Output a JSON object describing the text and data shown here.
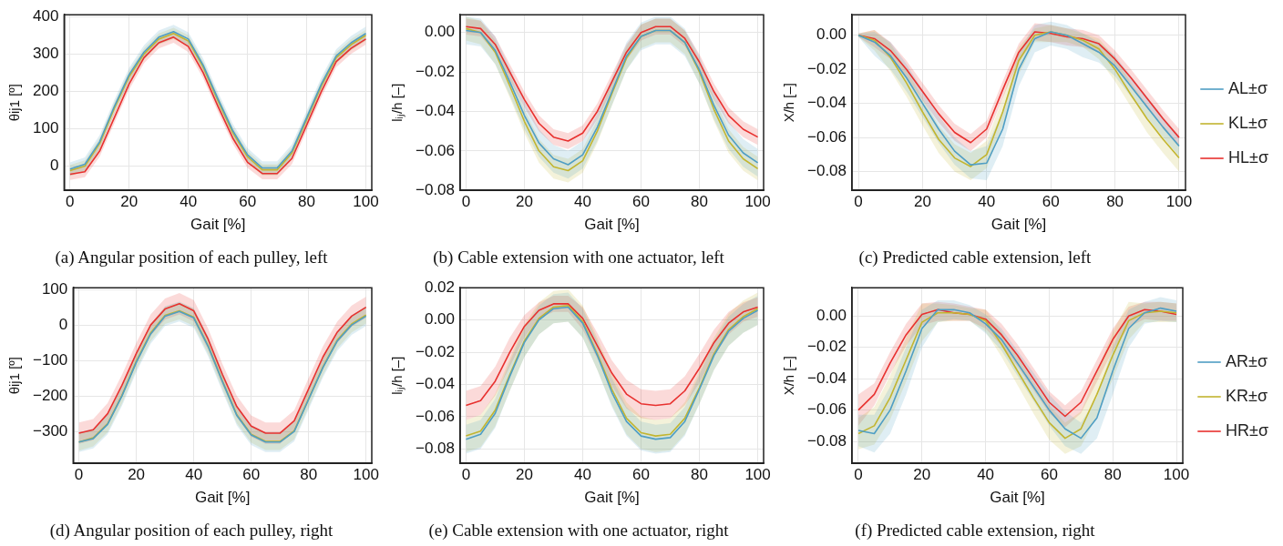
{
  "chart_data": [
    {
      "type": "line",
      "title": "(a) Angular position of each pulley, left",
      "xlabel": "Gait [%]",
      "ylabel": "θij1 [º]",
      "x": [
        0,
        5,
        10,
        15,
        20,
        25,
        30,
        35,
        40,
        45,
        50,
        55,
        60,
        65,
        70,
        75,
        80,
        85,
        90,
        95,
        100
      ],
      "xlim": [
        -2,
        102
      ],
      "xticks": [
        0,
        20,
        40,
        60,
        80,
        100
      ],
      "ylim": [
        -65,
        405
      ],
      "yticks": [
        0,
        100,
        200,
        300,
        400
      ],
      "grid": true,
      "legend": false,
      "marker": "none",
      "line_style": "solid",
      "series": [
        {
          "color": "#4f9ec4",
          "values": [
            -8,
            5,
            65,
            160,
            245,
            305,
            345,
            360,
            340,
            270,
            180,
            95,
            30,
            -5,
            -5,
            40,
            130,
            220,
            295,
            330,
            355
          ],
          "lower": [
            -26,
            -13,
            47,
            142,
            227,
            287,
            327,
            342,
            322,
            252,
            162,
            77,
            12,
            -23,
            -23,
            22,
            112,
            202,
            277,
            312,
            337
          ],
          "upper": [
            10,
            23,
            83,
            178,
            263,
            323,
            363,
            378,
            358,
            288,
            198,
            113,
            48,
            13,
            13,
            58,
            148,
            238,
            313,
            348,
            373
          ]
        },
        {
          "color": "#c2b530",
          "values": [
            -12,
            0,
            60,
            155,
            240,
            300,
            340,
            355,
            335,
            265,
            175,
            90,
            25,
            -10,
            -10,
            35,
            125,
            215,
            290,
            325,
            350
          ],
          "lower": [
            -27,
            -15,
            45,
            140,
            225,
            285,
            325,
            340,
            320,
            250,
            160,
            75,
            10,
            -25,
            -25,
            20,
            110,
            200,
            275,
            310,
            335
          ],
          "upper": [
            3,
            15,
            75,
            170,
            255,
            315,
            355,
            370,
            350,
            280,
            190,
            105,
            40,
            5,
            5,
            50,
            140,
            230,
            305,
            340,
            365
          ]
        },
        {
          "color": "#e8312f",
          "values": [
            -22,
            -15,
            40,
            130,
            220,
            290,
            330,
            345,
            320,
            250,
            160,
            75,
            10,
            -20,
            -20,
            20,
            110,
            200,
            280,
            315,
            340
          ],
          "lower": [
            -37,
            -30,
            25,
            115,
            205,
            275,
            315,
            330,
            305,
            235,
            145,
            60,
            -5,
            -35,
            -35,
            5,
            95,
            185,
            265,
            300,
            325
          ],
          "upper": [
            -7,
            0,
            55,
            145,
            235,
            305,
            345,
            360,
            335,
            265,
            175,
            90,
            25,
            -5,
            -5,
            35,
            125,
            215,
            295,
            330,
            355
          ]
        }
      ]
    },
    {
      "type": "line",
      "title": "(b) Cable extension with one actuator, left",
      "xlabel": "Gait [%]",
      "ylabel": "lᵢⱼ/h [–]",
      "x": [
        0,
        5,
        10,
        15,
        20,
        25,
        30,
        35,
        40,
        45,
        50,
        55,
        60,
        65,
        70,
        75,
        80,
        85,
        90,
        95,
        100
      ],
      "xlim": [
        -2,
        102
      ],
      "xticks": [
        0,
        20,
        40,
        60,
        80,
        100
      ],
      "ylim": [
        -0.08,
        0.009
      ],
      "yticks": [
        {
          "value": -0.08,
          "label": "−0.08"
        },
        {
          "value": -0.06,
          "label": "−0.06"
        },
        {
          "value": -0.04,
          "label": "−0.04"
        },
        {
          "value": -0.02,
          "label": "−0.02"
        },
        {
          "value": 0,
          "label": "0.00"
        }
      ],
      "grid": true,
      "legend": false,
      "marker": "none",
      "line_style": "solid",
      "series": [
        {
          "color": "#4f9ec4",
          "values": [
            0.001,
            0,
            -0.009,
            -0.025,
            -0.042,
            -0.056,
            -0.064,
            -0.067,
            -0.062,
            -0.048,
            -0.03,
            -0.012,
            -0.002,
            0.001,
            0.001,
            -0.005,
            -0.019,
            -0.037,
            -0.052,
            -0.061,
            -0.066
          ],
          "lower": [
            -0.006,
            -0.007,
            -0.016,
            -0.032,
            -0.049,
            -0.063,
            -0.071,
            -0.074,
            -0.069,
            -0.055,
            -0.037,
            -0.019,
            -0.009,
            -0.006,
            -0.006,
            -0.012,
            -0.026,
            -0.044,
            -0.059,
            -0.068,
            -0.073
          ],
          "upper": [
            0.008,
            0.007,
            -0.002,
            -0.018,
            -0.035,
            -0.049,
            -0.057,
            -0.06,
            -0.055,
            -0.041,
            -0.023,
            -0.005,
            0.005,
            0.008,
            0.008,
            0.002,
            -0.012,
            -0.03,
            -0.045,
            -0.054,
            -0.059
          ]
        },
        {
          "color": "#c2b530",
          "values": [
            0.002,
            0,
            -0.01,
            -0.027,
            -0.045,
            -0.06,
            -0.068,
            -0.07,
            -0.065,
            -0.05,
            -0.031,
            -0.013,
            -0.002,
            0.001,
            0.001,
            -0.005,
            -0.02,
            -0.039,
            -0.055,
            -0.064,
            -0.069
          ],
          "lower": [
            -0.004,
            -0.006,
            -0.016,
            -0.033,
            -0.051,
            -0.066,
            -0.074,
            -0.076,
            -0.071,
            -0.056,
            -0.037,
            -0.019,
            -0.008,
            -0.005,
            -0.005,
            -0.011,
            -0.026,
            -0.045,
            -0.061,
            -0.07,
            -0.075
          ],
          "upper": [
            0.008,
            0.006,
            -0.004,
            -0.021,
            -0.039,
            -0.054,
            -0.062,
            -0.064,
            -0.059,
            -0.044,
            -0.025,
            -0.007,
            0.004,
            0.007,
            0.007,
            0.001,
            -0.014,
            -0.033,
            -0.049,
            -0.058,
            -0.063
          ]
        },
        {
          "color": "#e8312f",
          "values": [
            0.003,
            0.002,
            -0.006,
            -0.02,
            -0.034,
            -0.046,
            -0.053,
            -0.055,
            -0.051,
            -0.04,
            -0.025,
            -0.01,
            0,
            0.003,
            0.003,
            -0.003,
            -0.015,
            -0.03,
            -0.042,
            -0.049,
            -0.053
          ],
          "lower": [
            -0.001,
            -0.002,
            -0.01,
            -0.024,
            -0.038,
            -0.05,
            -0.057,
            -0.059,
            -0.055,
            -0.044,
            -0.029,
            -0.014,
            -0.004,
            -0.001,
            -0.001,
            -0.007,
            -0.019,
            -0.034,
            -0.046,
            -0.053,
            -0.057
          ],
          "upper": [
            0.007,
            0.006,
            -0.002,
            -0.016,
            -0.03,
            -0.042,
            -0.049,
            -0.051,
            -0.047,
            -0.036,
            -0.021,
            -0.006,
            0.004,
            0.007,
            0.007,
            0.001,
            -0.011,
            -0.026,
            -0.038,
            -0.045,
            -0.049
          ]
        }
      ]
    },
    {
      "type": "line",
      "title": "(c) Predicted cable extension, left",
      "xlabel": "Gait [%]",
      "ylabel": "X/h [–]",
      "x": [
        0,
        5,
        10,
        15,
        20,
        25,
        30,
        35,
        40,
        45,
        50,
        55,
        60,
        65,
        70,
        75,
        80,
        85,
        90,
        95,
        100
      ],
      "xlim": [
        -2,
        102
      ],
      "xticks": [
        0,
        20,
        40,
        60,
        80,
        100
      ],
      "ylim": [
        -0.091,
        0.012
      ],
      "yticks": [
        {
          "value": -0.08,
          "label": "−0.08"
        },
        {
          "value": -0.06,
          "label": "−0.06"
        },
        {
          "value": -0.04,
          "label": "−0.04"
        },
        {
          "value": -0.02,
          "label": "−0.02"
        },
        {
          "value": 0,
          "label": "0.00"
        }
      ],
      "grid": true,
      "legend": "right",
      "marker": "none",
      "line_style": "solid",
      "series": [
        {
          "name": "AL±σ",
          "color": "#4f9ec4",
          "values": [
            0,
            -0.004,
            -0.012,
            -0.025,
            -0.04,
            -0.055,
            -0.068,
            -0.076,
            -0.075,
            -0.055,
            -0.02,
            -0.002,
            0.002,
            0,
            -0.005,
            -0.01,
            -0.018,
            -0.03,
            -0.042,
            -0.054,
            -0.065
          ],
          "lower": [
            -0.001,
            -0.012,
            -0.02,
            -0.033,
            -0.048,
            -0.063,
            -0.076,
            -0.084,
            -0.085,
            -0.065,
            -0.03,
            -0.01,
            -0.006,
            -0.008,
            -0.013,
            -0.016,
            -0.024,
            -0.036,
            -0.048,
            -0.06,
            -0.071
          ],
          "upper": [
            0.001,
            0.002,
            -0.004,
            -0.017,
            -0.032,
            -0.047,
            -0.06,
            -0.068,
            -0.065,
            -0.045,
            -0.01,
            0.006,
            0.008,
            0.006,
            0.001,
            -0.004,
            -0.012,
            -0.024,
            -0.036,
            -0.048,
            -0.059
          ]
        },
        {
          "name": "KL±σ",
          "color": "#c2b530",
          "values": [
            0,
            -0.003,
            -0.013,
            -0.028,
            -0.045,
            -0.061,
            -0.072,
            -0.077,
            -0.07,
            -0.045,
            -0.015,
            0,
            0.002,
            0,
            -0.003,
            -0.008,
            -0.02,
            -0.035,
            -0.049,
            -0.061,
            -0.072
          ],
          "lower": [
            -0.001,
            -0.009,
            -0.021,
            -0.036,
            -0.053,
            -0.069,
            -0.08,
            -0.085,
            -0.078,
            -0.053,
            -0.023,
            -0.004,
            -0.004,
            -0.004,
            -0.007,
            -0.014,
            -0.027,
            -0.042,
            -0.057,
            -0.069,
            -0.08
          ],
          "upper": [
            0.001,
            0.003,
            -0.005,
            -0.02,
            -0.037,
            -0.053,
            -0.064,
            -0.069,
            -0.062,
            -0.037,
            -0.007,
            0.004,
            0.006,
            0.004,
            0.001,
            -0.002,
            -0.013,
            -0.028,
            -0.041,
            -0.053,
            -0.064
          ]
        },
        {
          "name": "HL±σ",
          "color": "#e8312f",
          "values": [
            0,
            -0.002,
            -0.009,
            -0.02,
            -0.033,
            -0.046,
            -0.057,
            -0.063,
            -0.055,
            -0.032,
            -0.01,
            0.002,
            0.001,
            -0.001,
            -0.002,
            -0.005,
            -0.014,
            -0.025,
            -0.037,
            -0.049,
            -0.06
          ],
          "lower": [
            -0.001,
            -0.007,
            -0.014,
            -0.025,
            -0.038,
            -0.051,
            -0.062,
            -0.068,
            -0.06,
            -0.037,
            -0.015,
            -0.003,
            -0.004,
            -0.006,
            -0.007,
            -0.01,
            -0.019,
            -0.03,
            -0.042,
            -0.054,
            -0.065
          ],
          "upper": [
            0.001,
            0.003,
            -0.004,
            -0.015,
            -0.028,
            -0.041,
            -0.052,
            -0.058,
            -0.05,
            -0.027,
            -0.005,
            0.007,
            0.006,
            0.004,
            0.003,
            0,
            -0.009,
            -0.02,
            -0.032,
            -0.044,
            -0.055
          ]
        }
      ]
    },
    {
      "type": "line",
      "title": "(d) Angular position of each pulley, right",
      "xlabel": "Gait [%]",
      "ylabel": "θij1 [º]",
      "x": [
        0,
        5,
        10,
        15,
        20,
        25,
        30,
        35,
        40,
        45,
        50,
        55,
        60,
        65,
        70,
        75,
        80,
        85,
        90,
        95,
        100
      ],
      "xlim": [
        -2,
        102
      ],
      "xticks": [
        0,
        20,
        40,
        60,
        80,
        100
      ],
      "ylim": [
        -390,
        105
      ],
      "yticks": [
        {
          "value": -300,
          "label": "−300"
        },
        {
          "value": -200,
          "label": "−200"
        },
        {
          "value": -100,
          "label": "−100"
        },
        0,
        100
      ],
      "grid": true,
      "legend": false,
      "marker": "none",
      "line_style": "solid",
      "series": [
        {
          "color": "#4f9ec4",
          "values": [
            -330,
            -320,
            -280,
            -200,
            -105,
            -25,
            25,
            38,
            20,
            -60,
            -160,
            -255,
            -310,
            -330,
            -330,
            -300,
            -210,
            -120,
            -45,
            0,
            25
          ],
          "lower": [
            -358,
            -348,
            -308,
            -228,
            -133,
            -53,
            -3,
            10,
            -8,
            -88,
            -188,
            -283,
            -338,
            -358,
            -358,
            -328,
            -238,
            -148,
            -73,
            -28,
            -3
          ],
          "upper": [
            -302,
            -292,
            -252,
            -172,
            -77,
            3,
            53,
            66,
            48,
            -32,
            -132,
            -227,
            -282,
            -302,
            -302,
            -272,
            -182,
            -92,
            -17,
            28,
            53
          ]
        },
        {
          "color": "#c2b530",
          "values": [
            -330,
            -318,
            -278,
            -198,
            -102,
            -22,
            27,
            40,
            22,
            -58,
            -158,
            -253,
            -308,
            -328,
            -328,
            -298,
            -208,
            -118,
            -42,
            3,
            28
          ],
          "lower": [
            -354,
            -342,
            -302,
            -222,
            -126,
            -46,
            3,
            16,
            -2,
            -82,
            -182,
            -277,
            -332,
            -352,
            -352,
            -322,
            -232,
            -142,
            -66,
            -21,
            4
          ],
          "upper": [
            -306,
            -294,
            -254,
            -174,
            -78,
            2,
            51,
            64,
            46,
            -34,
            -134,
            -229,
            -284,
            -304,
            -304,
            -274,
            -184,
            -94,
            -18,
            27,
            52
          ]
        },
        {
          "color": "#e8312f",
          "values": [
            -305,
            -295,
            -250,
            -170,
            -80,
            0,
            45,
            60,
            40,
            -40,
            -140,
            -230,
            -285,
            -305,
            -305,
            -270,
            -180,
            -90,
            -20,
            25,
            50
          ],
          "lower": [
            -335,
            -325,
            -280,
            -200,
            -110,
            -30,
            15,
            30,
            10,
            -70,
            -170,
            -260,
            -315,
            -335,
            -335,
            -300,
            -210,
            -120,
            -50,
            -5,
            20
          ],
          "upper": [
            -275,
            -265,
            -220,
            -140,
            -50,
            30,
            75,
            90,
            70,
            -10,
            -110,
            -200,
            -255,
            -275,
            -275,
            -240,
            -150,
            -60,
            10,
            55,
            80
          ]
        }
      ]
    },
    {
      "type": "line",
      "title": "(e) Cable extension with one actuator, right",
      "xlabel": "Gait [%]",
      "ylabel": "lᵢⱼ/h [–]",
      "x": [
        0,
        5,
        10,
        15,
        20,
        25,
        30,
        35,
        40,
        45,
        50,
        55,
        60,
        65,
        70,
        75,
        80,
        85,
        90,
        95,
        100
      ],
      "xlim": [
        -2,
        102
      ],
      "xticks": [
        0,
        20,
        40,
        60,
        80,
        100
      ],
      "ylim": [
        -0.089,
        0.02
      ],
      "yticks": [
        {
          "value": -0.08,
          "label": "−0.08"
        },
        {
          "value": -0.06,
          "label": "−0.06"
        },
        {
          "value": -0.04,
          "label": "−0.04"
        },
        {
          "value": -0.02,
          "label": "−0.02"
        },
        {
          "value": 0,
          "label": "0.00"
        },
        {
          "value": 0.02,
          "label": "0.02"
        }
      ],
      "grid": true,
      "legend": false,
      "marker": "none",
      "line_style": "solid",
      "series": [
        {
          "color": "#4f9ec4",
          "values": [
            -0.074,
            -0.071,
            -0.058,
            -0.035,
            -0.014,
            0,
            0.007,
            0.008,
            -0.002,
            -0.022,
            -0.045,
            -0.063,
            -0.072,
            -0.074,
            -0.073,
            -0.063,
            -0.043,
            -0.022,
            -0.007,
            0.001,
            0.006
          ],
          "lower": [
            -0.083,
            -0.08,
            -0.067,
            -0.044,
            -0.023,
            -0.009,
            -0.002,
            -0.001,
            -0.011,
            -0.031,
            -0.054,
            -0.072,
            -0.081,
            -0.083,
            -0.082,
            -0.072,
            -0.052,
            -0.031,
            -0.016,
            -0.008,
            -0.003
          ],
          "upper": [
            -0.065,
            -0.062,
            -0.049,
            -0.026,
            -0.005,
            0.009,
            0.016,
            0.017,
            0.007,
            -0.013,
            -0.036,
            -0.054,
            -0.063,
            -0.065,
            -0.064,
            -0.054,
            -0.034,
            -0.013,
            0.002,
            0.01,
            0.015
          ]
        },
        {
          "color": "#c2b530",
          "values": [
            -0.072,
            -0.069,
            -0.056,
            -0.034,
            -0.013,
            0.001,
            0.008,
            0.009,
            -0.001,
            -0.021,
            -0.043,
            -0.061,
            -0.07,
            -0.072,
            -0.071,
            -0.061,
            -0.042,
            -0.021,
            -0.006,
            0.002,
            0.007
          ],
          "lower": [
            -0.082,
            -0.079,
            -0.066,
            -0.044,
            -0.023,
            -0.009,
            -0.002,
            -0.001,
            -0.011,
            -0.031,
            -0.053,
            -0.071,
            -0.08,
            -0.082,
            -0.081,
            -0.071,
            -0.052,
            -0.031,
            -0.016,
            -0.008,
            -0.003
          ],
          "upper": [
            -0.062,
            -0.059,
            -0.046,
            -0.024,
            -0.003,
            0.011,
            0.018,
            0.019,
            0.009,
            -0.011,
            -0.033,
            -0.051,
            -0.06,
            -0.062,
            -0.061,
            -0.051,
            -0.032,
            -0.011,
            0.004,
            0.012,
            0.017
          ]
        },
        {
          "color": "#e8312f",
          "values": [
            -0.053,
            -0.05,
            -0.038,
            -0.02,
            -0.004,
            0.006,
            0.01,
            0.01,
            0.001,
            -0.016,
            -0.033,
            -0.046,
            -0.052,
            -0.053,
            -0.052,
            -0.044,
            -0.03,
            -0.014,
            -0.002,
            0.005,
            0.008
          ],
          "lower": [
            -0.062,
            -0.059,
            -0.047,
            -0.029,
            -0.011,
            0.001,
            0.005,
            0.005,
            -0.006,
            -0.024,
            -0.041,
            -0.055,
            -0.061,
            -0.062,
            -0.061,
            -0.053,
            -0.039,
            -0.022,
            -0.009,
            -0.001,
            0.002
          ],
          "upper": [
            -0.044,
            -0.041,
            -0.029,
            -0.011,
            0.003,
            0.011,
            0.015,
            0.015,
            0.008,
            -0.008,
            -0.025,
            -0.037,
            -0.043,
            -0.044,
            -0.043,
            -0.035,
            -0.021,
            -0.006,
            0.005,
            0.011,
            0.014
          ]
        }
      ]
    },
    {
      "type": "line",
      "title": "(f) Predicted cable extension, right",
      "xlabel": "Gait [%]",
      "ylabel": "X/h [–]",
      "x": [
        0,
        5,
        10,
        15,
        20,
        25,
        30,
        35,
        40,
        45,
        50,
        55,
        60,
        65,
        70,
        75,
        80,
        85,
        90,
        95,
        100
      ],
      "xlim": [
        -2,
        102
      ],
      "xticks": [
        0,
        20,
        40,
        60,
        80,
        100
      ],
      "ylim": [
        -0.094,
        0.018
      ],
      "yticks": [
        {
          "value": -0.08,
          "label": "−0.08"
        },
        {
          "value": -0.06,
          "label": "−0.06"
        },
        {
          "value": -0.04,
          "label": "−0.04"
        },
        {
          "value": -0.02,
          "label": "−0.02"
        },
        {
          "value": 0,
          "label": "0.00"
        }
      ],
      "grid": true,
      "legend": "right",
      "marker": "none",
      "line_style": "solid",
      "series": [
        {
          "name": "AR±σ",
          "color": "#4f9ec4",
          "values": [
            -0.073,
            -0.075,
            -0.06,
            -0.035,
            -0.008,
            0.004,
            0.004,
            0.002,
            -0.005,
            -0.015,
            -0.03,
            -0.045,
            -0.06,
            -0.072,
            -0.078,
            -0.065,
            -0.035,
            -0.008,
            0.002,
            0.005,
            0.003
          ],
          "lower": [
            -0.083,
            -0.087,
            -0.075,
            -0.05,
            -0.02,
            -0.004,
            -0.002,
            -0.003,
            -0.011,
            -0.022,
            -0.038,
            -0.054,
            -0.07,
            -0.083,
            -0.088,
            -0.078,
            -0.05,
            -0.02,
            -0.005,
            -0.003,
            -0.004
          ],
          "upper": [
            -0.063,
            -0.063,
            -0.045,
            -0.02,
            0.004,
            0.01,
            0.01,
            0.007,
            0.001,
            -0.008,
            -0.022,
            -0.036,
            -0.05,
            -0.061,
            -0.068,
            -0.052,
            -0.02,
            0.004,
            0.009,
            0.012,
            0.01
          ]
        },
        {
          "name": "KR±σ",
          "color": "#c2b530",
          "values": [
            -0.075,
            -0.07,
            -0.052,
            -0.028,
            -0.004,
            0.002,
            0.002,
            0.001,
            -0.003,
            -0.018,
            -0.035,
            -0.052,
            -0.068,
            -0.078,
            -0.072,
            -0.05,
            -0.025,
            -0.003,
            0.002,
            0.003,
            0.002
          ],
          "lower": [
            -0.085,
            -0.082,
            -0.066,
            -0.042,
            -0.016,
            -0.004,
            -0.003,
            -0.003,
            -0.01,
            -0.026,
            -0.044,
            -0.062,
            -0.079,
            -0.088,
            -0.083,
            -0.064,
            -0.04,
            -0.015,
            -0.004,
            -0.004,
            -0.004
          ],
          "upper": [
            -0.065,
            -0.058,
            -0.038,
            -0.014,
            0.008,
            0.008,
            0.007,
            0.005,
            0.004,
            -0.01,
            -0.026,
            -0.042,
            -0.057,
            -0.068,
            -0.061,
            -0.036,
            -0.01,
            0.009,
            0.008,
            0.009,
            0.008
          ]
        },
        {
          "name": "HR±σ",
          "color": "#e8312f",
          "values": [
            -0.06,
            -0.05,
            -0.03,
            -0.012,
            0.001,
            0.004,
            0.002,
            0.001,
            -0.002,
            -0.012,
            -0.025,
            -0.04,
            -0.055,
            -0.064,
            -0.055,
            -0.035,
            -0.015,
            0,
            0.004,
            0.003,
            0.001
          ],
          "lower": [
            -0.07,
            -0.057,
            -0.037,
            -0.019,
            -0.006,
            -0.003,
            -0.003,
            -0.003,
            -0.008,
            -0.019,
            -0.032,
            -0.047,
            -0.062,
            -0.071,
            -0.062,
            -0.042,
            -0.022,
            -0.007,
            -0.002,
            -0.003,
            -0.003
          ],
          "upper": [
            -0.05,
            -0.043,
            -0.023,
            -0.005,
            0.008,
            0.009,
            0.008,
            0.006,
            0.004,
            -0.005,
            -0.018,
            -0.033,
            -0.048,
            -0.057,
            -0.048,
            -0.028,
            -0.008,
            0.006,
            0.009,
            0.009,
            0.008
          ]
        }
      ]
    }
  ]
}
